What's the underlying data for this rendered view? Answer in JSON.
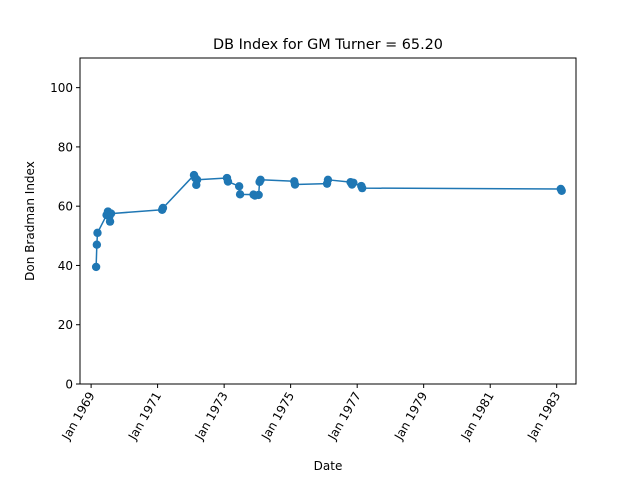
{
  "chart_data": {
    "type": "line",
    "title": "DB Index for GM Turner = 65.20",
    "xlabel": "Date",
    "ylabel": "Don Bradman Index",
    "x_scale": "date",
    "xlim": [
      "1968-09-01",
      "1983-08-01"
    ],
    "ylim": [
      0,
      110
    ],
    "x_ticks": [
      {
        "date": "1969-01-01",
        "label": "Jan 1969"
      },
      {
        "date": "1971-01-01",
        "label": "Jan 1971"
      },
      {
        "date": "1973-01-01",
        "label": "Jan 1973"
      },
      {
        "date": "1975-01-01",
        "label": "Jan 1975"
      },
      {
        "date": "1977-01-01",
        "label": "Jan 1977"
      },
      {
        "date": "1979-01-01",
        "label": "Jan 1979"
      },
      {
        "date": "1981-01-01",
        "label": "Jan 1981"
      },
      {
        "date": "1983-01-01",
        "label": "Jan 1983"
      }
    ],
    "y_ticks": [
      {
        "value": 0,
        "label": "0"
      },
      {
        "value": 20,
        "label": "20"
      },
      {
        "value": 40,
        "label": "40"
      },
      {
        "value": 60,
        "label": "60"
      },
      {
        "value": 80,
        "label": "80"
      },
      {
        "value": 100,
        "label": "100"
      }
    ],
    "grid": false,
    "legend": "none",
    "color": "#1f77b4",
    "series": [
      {
        "points": [
          {
            "x": "1969-02-25",
            "y": 39.5
          },
          {
            "x": "1969-03-05",
            "y": 47.0
          },
          {
            "x": "1969-03-12",
            "y": 51.0
          },
          {
            "x": "1969-06-20",
            "y": 57.0
          },
          {
            "x": "1969-07-05",
            "y": 58.2
          },
          {
            "x": "1969-07-20",
            "y": 56.5
          },
          {
            "x": "1969-07-28",
            "y": 54.8
          },
          {
            "x": "1969-08-08",
            "y": 57.5
          },
          {
            "x": "1971-02-20",
            "y": 58.8
          },
          {
            "x": "1971-03-01",
            "y": 59.4
          },
          {
            "x": "1972-02-05",
            "y": 70.5
          },
          {
            "x": "1972-02-18",
            "y": 69.5
          },
          {
            "x": "1972-03-01",
            "y": 67.2
          },
          {
            "x": "1972-03-10",
            "y": 68.9
          },
          {
            "x": "1973-02-01",
            "y": 69.5
          },
          {
            "x": "1973-02-12",
            "y": 68.3
          },
          {
            "x": "1973-06-15",
            "y": 66.7
          },
          {
            "x": "1973-06-25",
            "y": 64.0
          },
          {
            "x": "1973-11-20",
            "y": 63.9
          },
          {
            "x": "1973-12-05",
            "y": 63.6
          },
          {
            "x": "1974-01-15",
            "y": 63.8
          },
          {
            "x": "1974-01-25",
            "y": 68.2
          },
          {
            "x": "1974-02-05",
            "y": 68.9
          },
          {
            "x": "1975-02-10",
            "y": 68.4
          },
          {
            "x": "1975-02-18",
            "y": 67.3
          },
          {
            "x": "1976-02-05",
            "y": 67.6
          },
          {
            "x": "1976-02-15",
            "y": 68.9
          },
          {
            "x": "1976-10-20",
            "y": 68.1
          },
          {
            "x": "1976-11-05",
            "y": 67.3
          },
          {
            "x": "1976-11-20",
            "y": 67.9
          },
          {
            "x": "1977-02-15",
            "y": 66.8
          },
          {
            "x": "1977-02-25",
            "y": 66.1
          },
          {
            "x": "1983-02-15",
            "y": 65.8
          },
          {
            "x": "1983-02-25",
            "y": 65.2
          }
        ]
      }
    ]
  }
}
